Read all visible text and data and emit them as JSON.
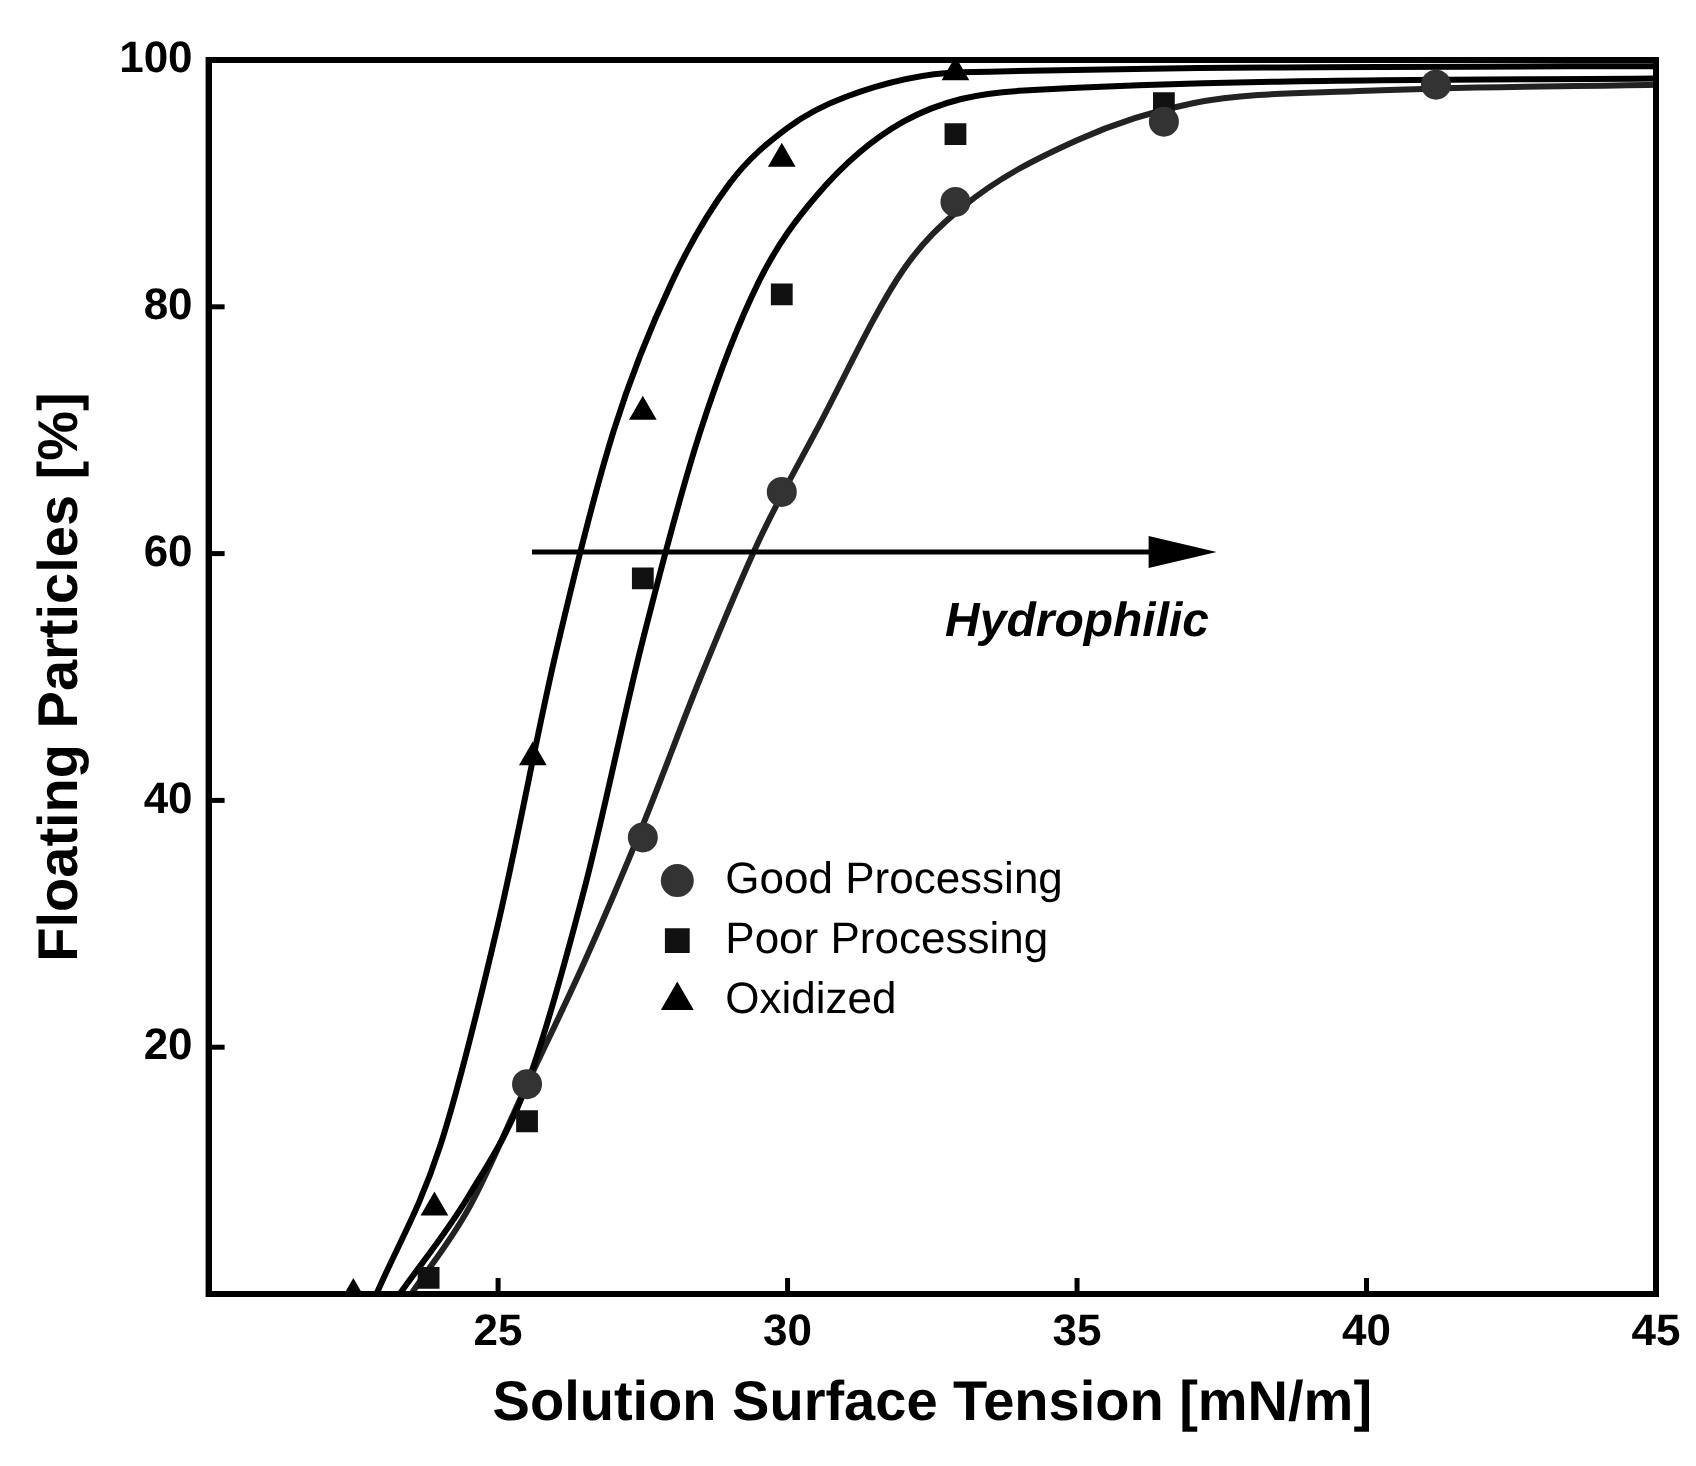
{
  "chart_data": {
    "type": "scatter",
    "xlabel": "Solution Surface Tension [mN/m]",
    "ylabel": "Floating Particles [%]",
    "xlim": [
      20,
      45
    ],
    "xticks": [
      25,
      30,
      35,
      40,
      45
    ],
    "ylim": [
      0,
      100
    ],
    "yticks": [
      20,
      40,
      60,
      80,
      100
    ],
    "grid": false,
    "legend": "bottom",
    "annotations": [
      "Hydrophilic"
    ],
    "series": [
      {
        "name": "Good Processing",
        "color": "#333333",
        "marker": "circle",
        "x": [
          25.5,
          27.5,
          29.9,
          32.9,
          36.5,
          41.2
        ],
        "values": [
          17,
          37,
          65,
          88.5,
          95,
          98
        ]
      },
      {
        "name": "Poor Processing",
        "color": "#111111",
        "marker": "square",
        "x": [
          23.8,
          25.5,
          27.5,
          29.9,
          32.9,
          36.5
        ],
        "values": [
          1.3,
          14,
          58,
          81,
          94,
          96.5
        ]
      },
      {
        "name": "Oxidized",
        "color": "#000000",
        "marker": "triangle",
        "x": [
          22.5,
          23.9,
          25.6,
          27.5,
          29.9,
          32.9
        ],
        "values": [
          0,
          7,
          43.5,
          71.5,
          92,
          99
        ]
      },
      {
        "type": "line",
        "color": "#000000",
        "marker": "none",
        "x": [
          22.9,
          24,
          25,
          26,
          27,
          28,
          29,
          30,
          31,
          33,
          45
        ],
        "values": [
          0,
          12,
          30,
          52,
          70,
          82,
          90,
          94.5,
          97,
          99,
          99.5
        ]
      },
      {
        "type": "line",
        "color": "#000000",
        "marker": "none",
        "x": [
          23.3,
          24.5,
          25.5,
          26.5,
          27.5,
          28.5,
          29.5,
          30.5,
          32,
          34,
          45
        ],
        "values": [
          0,
          8,
          17,
          33,
          53,
          70,
          82,
          89,
          95,
          97.5,
          98.5
        ]
      },
      {
        "type": "line",
        "color": "#222222",
        "marker": "none",
        "x": [
          23.5,
          24.5,
          25.5,
          26.5,
          27.5,
          28.5,
          29.5,
          30.5,
          32,
          33,
          35,
          37,
          40,
          45
        ],
        "values": [
          0,
          7,
          17,
          27,
          38,
          50,
          61,
          70,
          83,
          88,
          93.5,
          96.5,
          97.5,
          98
        ]
      }
    ]
  }
}
